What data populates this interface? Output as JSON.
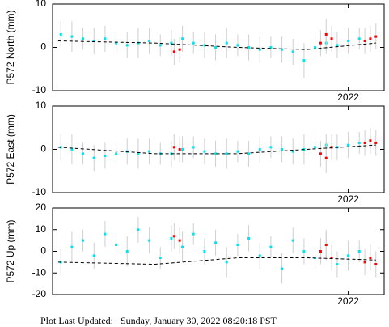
{
  "chart_data": [
    {
      "type": "scatter",
      "ylabel": "P572 North (mm)",
      "xlim": [
        2020.93,
        2022.13
      ],
      "ylim": [
        -10,
        10
      ],
      "yticks": [
        -10,
        0,
        10
      ],
      "xticks": [
        2022
      ],
      "series": [
        {
          "color": "#00e5ee",
          "x": [
            2020.96,
            2021.0,
            2021.04,
            2021.08,
            2021.12,
            2021.16,
            2021.2,
            2021.24,
            2021.28,
            2021.32,
            2021.36,
            2021.4,
            2021.44,
            2021.48,
            2021.52,
            2021.56,
            2021.6,
            2021.64,
            2021.68,
            2021.72,
            2021.76,
            2021.8,
            2021.84,
            2021.88,
            2021.92,
            2021.96,
            2022.0,
            2022.04
          ],
          "values": [
            3,
            2.5,
            2,
            1.5,
            2,
            1,
            0.5,
            1,
            1.5,
            0.5,
            1,
            2,
            1,
            0.5,
            0,
            1,
            0.5,
            0,
            -0.5,
            0,
            -0.5,
            -1,
            -3,
            0,
            1,
            0.5,
            1.5,
            2
          ],
          "errors": [
            3,
            3.5,
            2.5,
            3,
            3,
            2.5,
            3,
            3.5,
            3,
            2.5,
            3,
            3,
            2.5,
            3,
            3,
            3.5,
            2.5,
            3,
            3,
            2.5,
            3,
            3,
            4,
            3,
            2.5,
            3,
            3,
            2.5
          ]
        },
        {
          "color": "#ff0000",
          "x": [
            2021.37,
            2021.39,
            2021.9,
            2021.92,
            2021.94,
            2022.06,
            2022.08,
            2022.1
          ],
          "values": [
            -1,
            -0.5,
            1,
            3,
            2,
            1.5,
            2,
            2.5
          ],
          "errors": [
            3,
            3,
            3,
            3.5,
            3,
            3,
            3,
            3
          ]
        },
        {
          "color": "#000000",
          "style": "dashed",
          "x": [
            2020.95,
            2021.3,
            2021.6,
            2021.85,
            2022.1
          ],
          "values": [
            1.5,
            1,
            0,
            -0.5,
            1
          ]
        }
      ]
    },
    {
      "type": "scatter",
      "ylabel": "P572 East (mm)",
      "xlim": [
        2020.93,
        2022.13
      ],
      "ylim": [
        -10,
        10
      ],
      "yticks": [
        -10,
        0,
        10
      ],
      "xticks": [
        2022
      ],
      "series": [
        {
          "color": "#00e5ee",
          "x": [
            2020.96,
            2021.0,
            2021.04,
            2021.08,
            2021.12,
            2021.16,
            2021.2,
            2021.24,
            2021.28,
            2021.32,
            2021.36,
            2021.4,
            2021.44,
            2021.48,
            2021.52,
            2021.56,
            2021.6,
            2021.64,
            2021.68,
            2021.72,
            2021.76,
            2021.8,
            2021.84,
            2021.88,
            2021.92,
            2021.96,
            2022.0,
            2022.04
          ],
          "values": [
            0.5,
            0,
            -1,
            -2,
            -1.5,
            -1,
            -0.5,
            -1,
            -0.5,
            -1,
            -1,
            0,
            0.5,
            -0.5,
            -1,
            -1,
            -0.5,
            -1,
            0,
            0.5,
            0,
            -0.5,
            0,
            0.5,
            1,
            0.5,
            1,
            1.5
          ],
          "errors": [
            3,
            3.5,
            2.5,
            3,
            3,
            2.5,
            3,
            3.5,
            3,
            2.5,
            3,
            3,
            2.5,
            3,
            3,
            3.5,
            2.5,
            3,
            3,
            2.5,
            3,
            3,
            3.5,
            3,
            2.5,
            3,
            3,
            2.5
          ]
        },
        {
          "color": "#ff0000",
          "x": [
            2021.37,
            2021.39,
            2021.9,
            2021.92,
            2021.94,
            2022.06,
            2022.08,
            2022.1
          ],
          "values": [
            0.5,
            0,
            -1,
            -2,
            0.5,
            1.5,
            2,
            1.5
          ],
          "errors": [
            3,
            3,
            3,
            3.5,
            3,
            3,
            3,
            3
          ]
        },
        {
          "color": "#000000",
          "style": "dashed",
          "x": [
            2020.95,
            2021.3,
            2021.6,
            2021.85,
            2022.1
          ],
          "values": [
            0.5,
            -1,
            -1,
            0,
            1
          ]
        }
      ]
    },
    {
      "type": "scatter",
      "ylabel": "P572 Up (mm)",
      "xlim": [
        2020.93,
        2022.13
      ],
      "ylim": [
        -20,
        20
      ],
      "yticks": [
        -20,
        -10,
        0,
        10,
        20
      ],
      "xticks": [
        2022
      ],
      "series": [
        {
          "color": "#00e5ee",
          "x": [
            2020.96,
            2021.0,
            2021.04,
            2021.08,
            2021.12,
            2021.16,
            2021.2,
            2021.24,
            2021.28,
            2021.32,
            2021.36,
            2021.4,
            2021.44,
            2021.48,
            2021.52,
            2021.56,
            2021.6,
            2021.64,
            2021.68,
            2021.72,
            2021.76,
            2021.8,
            2021.84,
            2021.88,
            2021.92,
            2021.96,
            2022.0,
            2022.04
          ],
          "values": [
            -5,
            2,
            5,
            -2,
            8,
            3,
            0,
            10,
            5,
            -3,
            6,
            2,
            8,
            0,
            4,
            -5,
            3,
            6,
            -2,
            2,
            -8,
            5,
            0,
            -3,
            3,
            -6,
            -2,
            0
          ],
          "errors": [
            6,
            7,
            5,
            6,
            6,
            5,
            7,
            6,
            6,
            5,
            6,
            7,
            5,
            6,
            6,
            7,
            5,
            6,
            6,
            5,
            7,
            6,
            6,
            5,
            6,
            6,
            7,
            5
          ]
        },
        {
          "color": "#ff0000",
          "x": [
            2021.37,
            2021.39,
            2021.9,
            2021.92,
            2021.94,
            2022.06,
            2022.08,
            2022.1
          ],
          "values": [
            7,
            5,
            0,
            3,
            -3,
            -5,
            -3,
            -6
          ],
          "errors": [
            6,
            6,
            6,
            7,
            6,
            6,
            6,
            6
          ]
        },
        {
          "color": "#000000",
          "style": "dashed",
          "x": [
            2020.95,
            2021.3,
            2021.6,
            2021.85,
            2022.1
          ],
          "values": [
            -5,
            -6,
            -3,
            -3,
            -4
          ]
        }
      ]
    }
  ],
  "footer": "Plot Last Updated:   Sunday, January 30, 2022 08:20:18 PST"
}
